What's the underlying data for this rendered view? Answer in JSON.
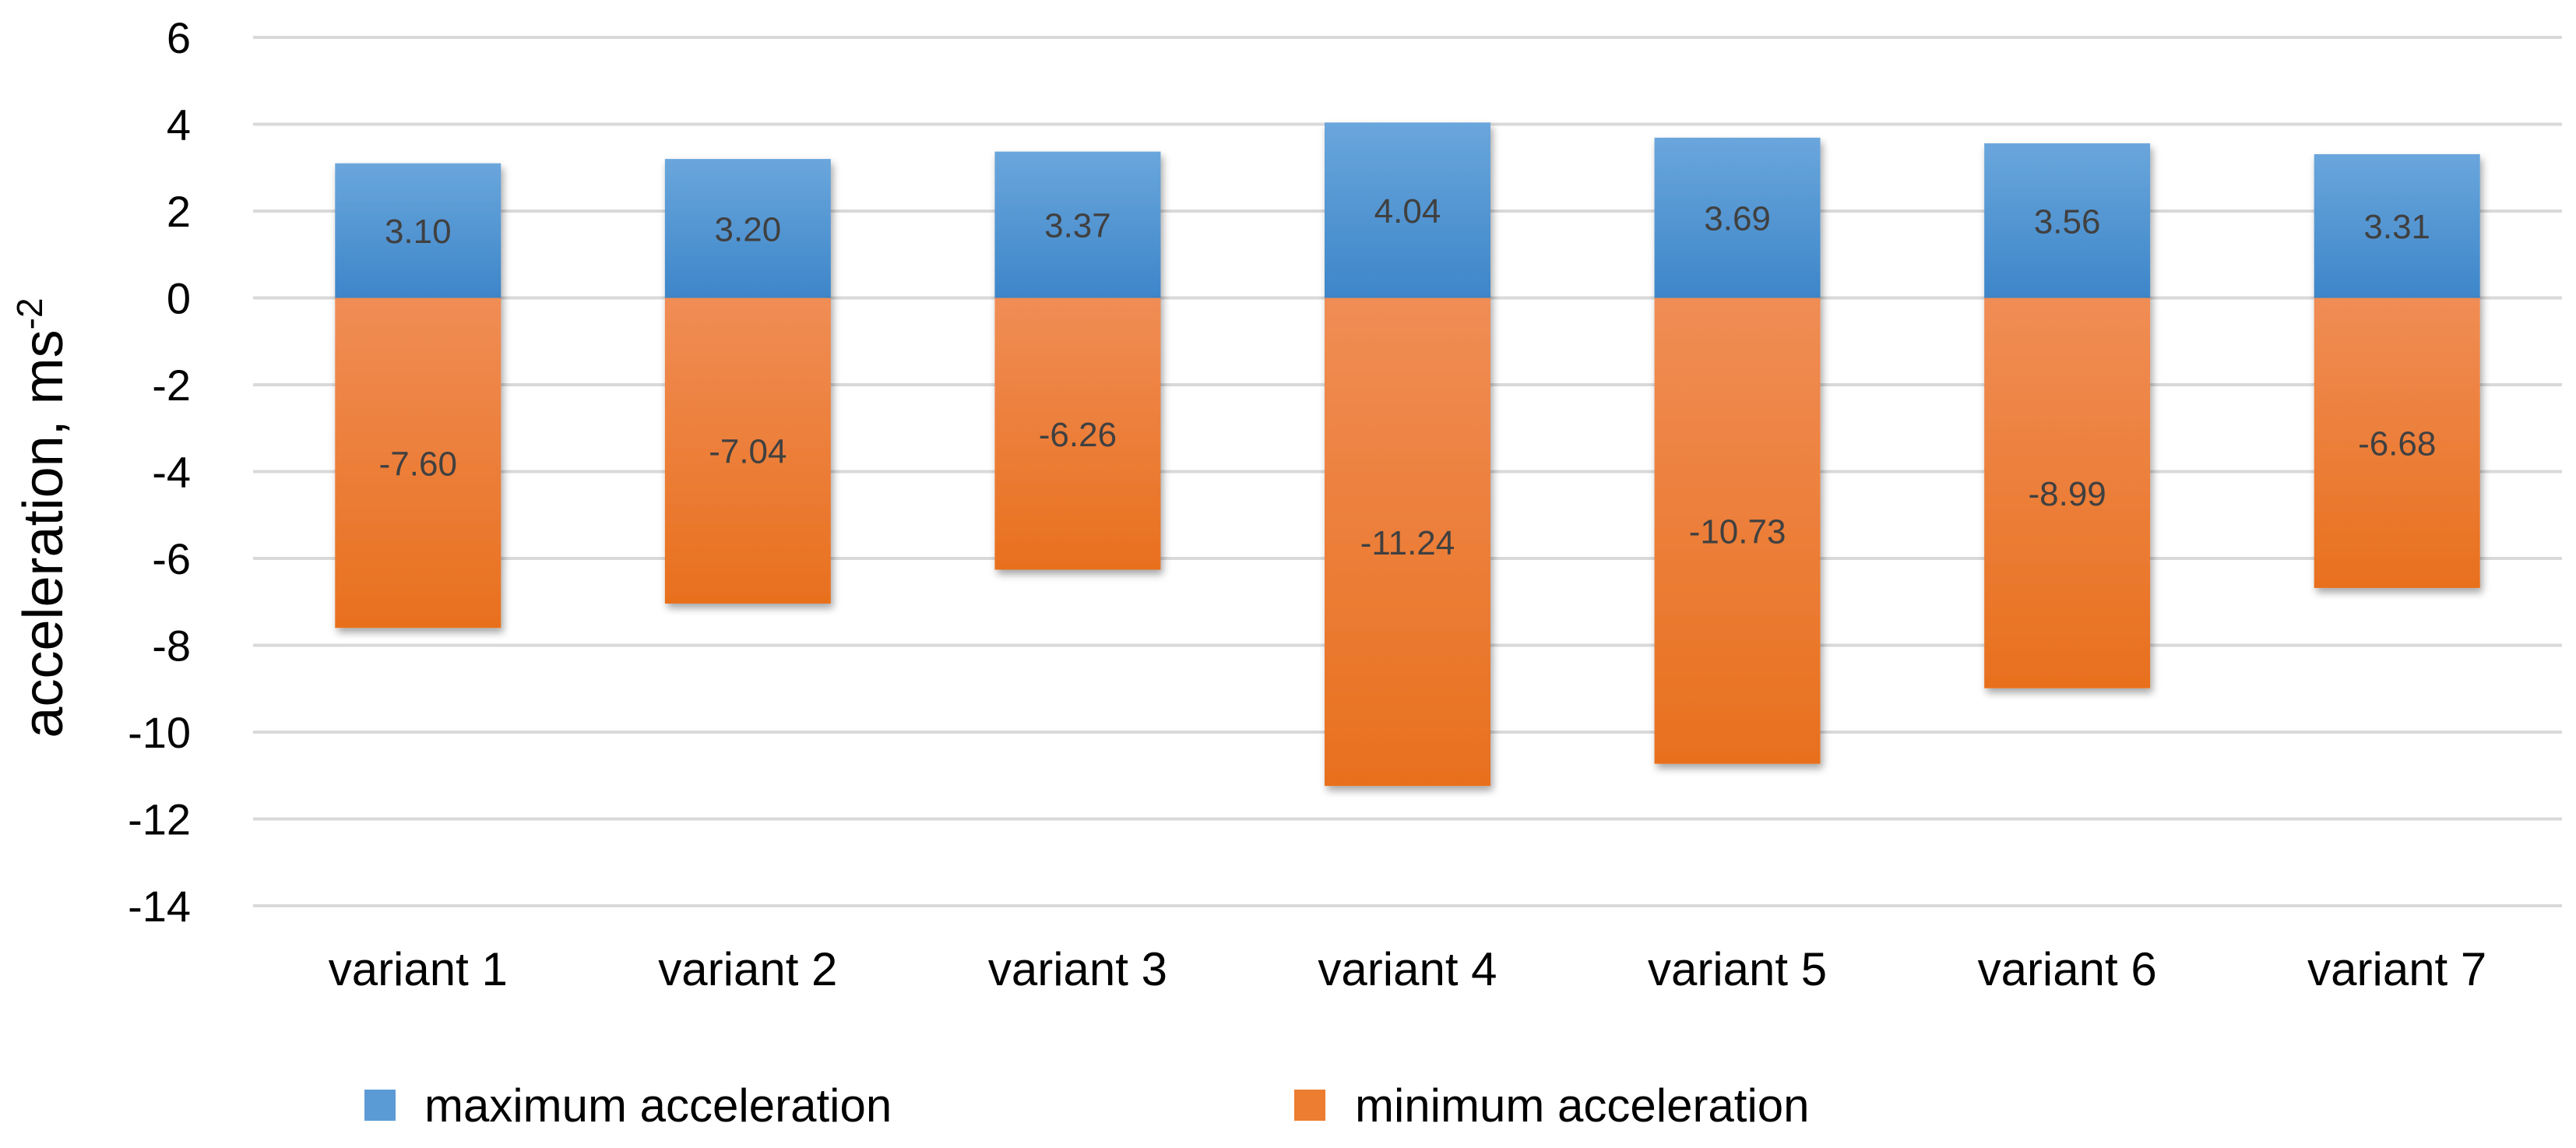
{
  "chart_data": {
    "type": "bar",
    "stacked": true,
    "title": "",
    "xlabel": "",
    "ylabel": "acceleration, ms",
    "ylabel_superscript": "-2",
    "ylim": [
      -14,
      6
    ],
    "yticks": [
      6,
      4,
      2,
      0,
      -2,
      -4,
      -6,
      -8,
      -10,
      -12,
      -14
    ],
    "grid": true,
    "legend_position": "bottom",
    "categories": [
      "variant 1",
      "variant 2",
      "variant 3",
      "variant 4",
      "variant 5",
      "variant 6",
      "variant 7"
    ],
    "series": [
      {
        "name": "maximum acceleration",
        "color": "#5b9bd5",
        "values": [
          3.1,
          3.2,
          3.37,
          4.04,
          3.69,
          3.56,
          3.31
        ],
        "labels": [
          "3.10",
          "3.20",
          "3.37",
          "4.04",
          "3.69",
          "3.56",
          "3.31"
        ]
      },
      {
        "name": "minimum acceleration",
        "color": "#ed7d31",
        "values": [
          -7.6,
          -7.04,
          -6.26,
          -11.24,
          -10.73,
          -8.99,
          -6.68
        ],
        "labels": [
          "-7.60",
          "-7.04",
          "-6.26",
          "-11.24",
          "-10.73",
          "-8.99",
          "-6.68"
        ]
      }
    ]
  }
}
